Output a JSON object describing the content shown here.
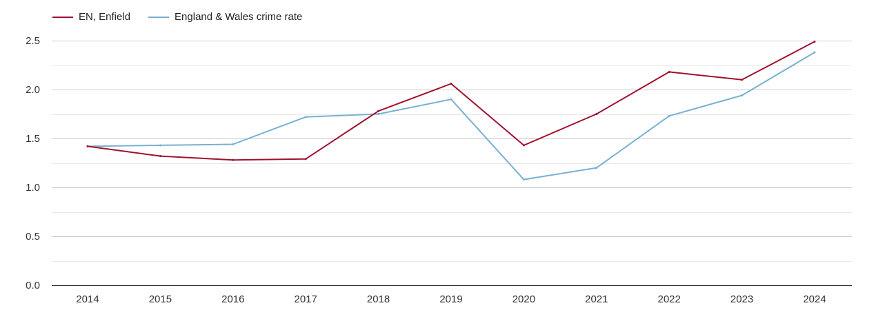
{
  "chart_data": {
    "type": "line",
    "title": "",
    "xlabel": "",
    "ylabel": "",
    "categories": [
      "2014",
      "2015",
      "2016",
      "2017",
      "2018",
      "2019",
      "2020",
      "2021",
      "2022",
      "2023",
      "2024"
    ],
    "ylim": [
      0,
      2.5
    ],
    "y_ticks": [
      "0.0",
      "0.5",
      "1.0",
      "1.5",
      "2.0",
      "2.5"
    ],
    "grid": true,
    "legend_position": "top-left",
    "series": [
      {
        "name": "EN, Enfield",
        "color": "#a0102e",
        "values": [
          1.42,
          1.32,
          1.28,
          1.29,
          1.78,
          2.06,
          1.43,
          1.75,
          2.18,
          2.1,
          2.49
        ]
      },
      {
        "name": "England & Wales crime rate",
        "color": "#78b0d2",
        "values": [
          1.42,
          1.43,
          1.44,
          1.72,
          1.75,
          1.9,
          1.08,
          1.2,
          1.73,
          1.94,
          2.38
        ]
      }
    ]
  }
}
